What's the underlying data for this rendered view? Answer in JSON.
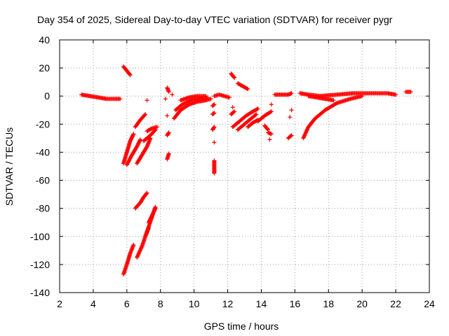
{
  "chart_data": {
    "type": "scatter",
    "title": "Day 354 of 2025, Sidereal Day-to-day VTEC variation (SDTVAR) for receiver pygr",
    "xlabel": "GPS time / hours",
    "ylabel": "SDTVAR / TECUs",
    "xlim": [
      2,
      24
    ],
    "ylim": [
      -140,
      40
    ],
    "xticks": [
      2,
      4,
      6,
      8,
      10,
      12,
      14,
      16,
      18,
      20,
      22,
      24
    ],
    "yticks": [
      -140,
      -120,
      -100,
      -80,
      -60,
      -40,
      -20,
      0,
      20,
      40
    ],
    "grid": true,
    "marker": "+",
    "color": "#ff0000",
    "segments": [
      {
        "x": [
          3.3,
          3.8,
          4.3,
          4.8,
          5.3,
          5.6
        ],
        "y": [
          1,
          0,
          -1,
          -2,
          -2,
          -2
        ]
      },
      {
        "x": [
          5.8,
          6.0,
          6.2
        ],
        "y": [
          21,
          18,
          15
        ]
      },
      {
        "x": [
          5.8,
          6.0,
          6.2,
          6.4
        ],
        "y": [
          -48,
          -40,
          -32,
          -27
        ]
      },
      {
        "x": [
          6.0,
          6.3,
          6.6,
          6.8
        ],
        "y": [
          -49,
          -42,
          -36,
          -31
        ]
      },
      {
        "x": [
          6.5,
          6.8,
          7.1
        ],
        "y": [
          -22,
          -17,
          -13
        ]
      },
      {
        "x": [
          6.6,
          6.9,
          7.2,
          7.4
        ],
        "y": [
          -48,
          -42,
          -36,
          -30
        ]
      },
      {
        "x": [
          7.0,
          7.4,
          7.7
        ],
        "y": [
          -32,
          -28,
          -24
        ]
      },
      {
        "x": [
          7.2,
          7.5,
          7.8
        ],
        "y": [
          -25,
          -23,
          -22
        ]
      },
      {
        "x": [
          7.2
        ],
        "y": [
          -3
        ]
      },
      {
        "x": [
          6.5,
          6.8,
          7.0,
          7.2
        ],
        "y": [
          -80,
          -76,
          -72,
          -69
        ]
      },
      {
        "x": [
          5.8,
          6.0,
          6.2,
          6.4
        ],
        "y": [
          -127,
          -120,
          -112,
          -106
        ]
      },
      {
        "x": [
          6.6,
          6.9,
          7.1,
          7.3
        ],
        "y": [
          -115,
          -107,
          -100,
          -94
        ]
      },
      {
        "x": [
          7.1,
          7.3,
          7.5,
          7.7
        ],
        "y": [
          -100,
          -93,
          -86,
          -79
        ]
      },
      {
        "x": [
          7.3,
          7.5,
          7.7
        ],
        "y": [
          -90,
          -85,
          -80
        ]
      },
      {
        "x": [
          8.4,
          8.5
        ],
        "y": [
          -45,
          -41
        ]
      },
      {
        "x": [
          8.4,
          8.5
        ],
        "y": [
          -28,
          -26
        ]
      },
      {
        "x": [
          8.4,
          8.5
        ],
        "y": [
          6,
          3
        ]
      },
      {
        "x": [
          8.4
        ],
        "y": [
          -14
        ]
      },
      {
        "x": [
          8.3
        ],
        "y": [
          -2
        ]
      },
      {
        "x": [
          8.7
        ],
        "y": [
          1
        ]
      },
      {
        "x": [
          8.8,
          9.2,
          9.7,
          10.2,
          10.7,
          11.0
        ],
        "y": [
          -16,
          -10,
          -6,
          -4,
          -3,
          -2
        ]
      },
      {
        "x": [
          8.9,
          9.3,
          9.8,
          10.3,
          10.8
        ],
        "y": [
          -10,
          -6,
          -3,
          -2,
          -1
        ]
      },
      {
        "x": [
          9.2,
          9.7,
          10.2,
          10.7
        ],
        "y": [
          -3,
          -1,
          0,
          0
        ]
      },
      {
        "x": [
          11.2,
          11.2,
          11.2,
          11.2
        ],
        "y": [
          -55,
          -52,
          -49,
          -46
        ]
      },
      {
        "x": [
          11.2
        ],
        "y": [
          -33
        ]
      },
      {
        "x": [
          11.1,
          11.2
        ],
        "y": [
          -24,
          -22
        ]
      },
      {
        "x": [
          11.1,
          11.2
        ],
        "y": [
          -13,
          -12
        ]
      },
      {
        "x": [
          11.1,
          11.2
        ],
        "y": [
          -7,
          -6
        ]
      },
      {
        "x": [
          11.2,
          11.5,
          11.8,
          12.1
        ],
        "y": [
          0,
          1,
          0,
          -1
        ]
      },
      {
        "x": [
          12.2,
          12.4
        ],
        "y": [
          16,
          13
        ]
      },
      {
        "x": [
          12.6,
          12.9,
          13.2
        ],
        "y": [
          9,
          7,
          5
        ]
      },
      {
        "x": [
          12.3
        ],
        "y": [
          -8
        ]
      },
      {
        "x": [
          12.2,
          12.4
        ],
        "y": [
          -13,
          -11
        ]
      },
      {
        "x": [
          12.3,
          12.7,
          13.1,
          13.5,
          13.8
        ],
        "y": [
          -22,
          -18,
          -14,
          -11,
          -9
        ]
      },
      {
        "x": [
          12.6,
          13.0,
          13.4,
          13.7
        ],
        "y": [
          -24,
          -20,
          -16,
          -13
        ]
      },
      {
        "x": [
          13.2,
          13.5,
          13.8
        ],
        "y": [
          -22,
          -19,
          -17
        ]
      },
      {
        "x": [
          13.8,
          14.2,
          14.6
        ],
        "y": [
          -18,
          -14,
          -11
        ]
      },
      {
        "x": [
          14.2,
          14.4
        ],
        "y": [
          -21,
          -24
        ]
      },
      {
        "x": [
          14.4,
          14.6
        ],
        "y": [
          -26,
          -27
        ]
      },
      {
        "x": [
          14.5
        ],
        "y": [
          -31
        ]
      },
      {
        "x": [
          14.6
        ],
        "y": [
          -6
        ]
      },
      {
        "x": [
          14.8,
          15.2,
          15.6,
          15.8
        ],
        "y": [
          1,
          1,
          1,
          2
        ]
      },
      {
        "x": [
          15.6,
          15.8
        ],
        "y": [
          -30,
          -28
        ]
      },
      {
        "x": [
          15.8
        ],
        "y": [
          -10
        ]
      },
      {
        "x": [
          15.7
        ],
        "y": [
          -15
        ]
      },
      {
        "x": [
          16.5,
          16.8,
          17.2,
          17.8,
          18.5,
          19.3,
          20.0
        ],
        "y": [
          -30,
          -22,
          -16,
          -10,
          -5,
          -2,
          0
        ]
      },
      {
        "x": [
          16.8,
          17.3,
          17.8,
          18.3
        ],
        "y": [
          0,
          -1,
          -2,
          -3
        ]
      },
      {
        "x": [
          16.3,
          16.8,
          17.5,
          18.5,
          19.5,
          20.5,
          21.5,
          22.0
        ],
        "y": [
          2,
          1,
          0,
          1,
          2,
          2,
          2,
          1
        ]
      },
      {
        "x": [
          22.6,
          22.9
        ],
        "y": [
          3,
          3
        ]
      }
    ]
  }
}
